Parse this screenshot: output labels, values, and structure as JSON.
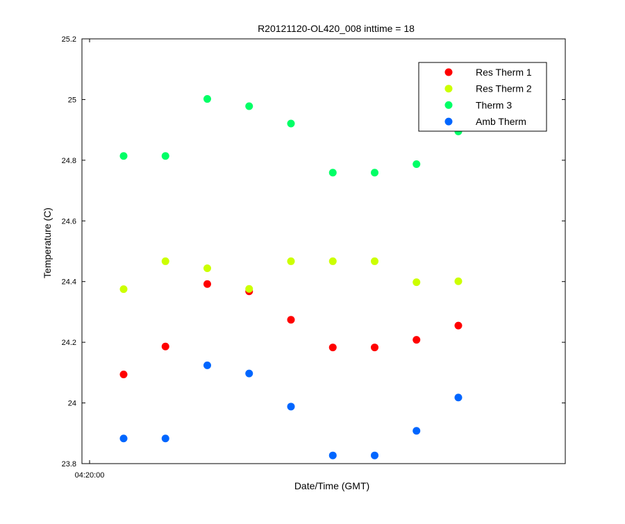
{
  "chart_data": {
    "type": "scatter",
    "title": "R20121120-OL420_008 inttime = 18",
    "xlabel": "Date/Time (GMT)",
    "ylabel": "Temperature (C)",
    "ylim": [
      23.8,
      25.2
    ],
    "y_ticks": [
      "23.8",
      "24",
      "24.2",
      "24.4",
      "24.6",
      "24.8",
      "25",
      "25.2"
    ],
    "x_tick_labels": [
      "04:20:00"
    ],
    "legend_position": "top-right",
    "grid": false,
    "series": [
      {
        "name": "Res Therm 1",
        "color": "#ff0000",
        "values": [
          24.094,
          24.186,
          24.392,
          24.368,
          24.274,
          24.183,
          24.183,
          24.208,
          24.255
        ]
      },
      {
        "name": "Res Therm 2",
        "color": "#ccff00",
        "values": [
          24.375,
          24.467,
          24.444,
          24.376,
          24.467,
          24.467,
          24.467,
          24.398,
          24.401
        ]
      },
      {
        "name": "Therm 3",
        "color": "#00ff66",
        "values": [
          24.814,
          24.814,
          25.002,
          24.978,
          24.921,
          24.759,
          24.759,
          24.787,
          24.895
        ]
      },
      {
        "name": "Amb Therm",
        "color": "#0066ff",
        "values": [
          23.883,
          23.883,
          24.124,
          24.097,
          23.988,
          23.827,
          23.827,
          23.908,
          24.018
        ]
      }
    ]
  }
}
